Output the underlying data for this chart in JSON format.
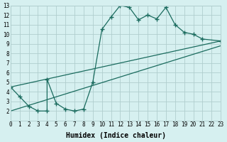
{
  "xlabel": "Humidex (Indice chaleur)",
  "bg_color": "#d6f0f0",
  "grid_color": "#b0cece",
  "line_color": "#1a6b5e",
  "xlim": [
    0,
    23
  ],
  "ylim": [
    1,
    13
  ],
  "xticks": [
    0,
    1,
    2,
    3,
    4,
    5,
    6,
    7,
    8,
    9,
    10,
    11,
    12,
    13,
    14,
    15,
    16,
    17,
    18,
    19,
    20,
    21,
    22,
    23
  ],
  "yticks": [
    2,
    3,
    4,
    5,
    6,
    7,
    8,
    9,
    10,
    11,
    12,
    13
  ],
  "series1_x": [
    0,
    1,
    2,
    3,
    4,
    4,
    5,
    6,
    7,
    8,
    9,
    10,
    11,
    12,
    13,
    14,
    15,
    16,
    17,
    18,
    19,
    20,
    21,
    23
  ],
  "series1_y": [
    4.5,
    3.5,
    2.5,
    2.0,
    2.0,
    5.3,
    2.8,
    2.2,
    2.0,
    2.2,
    5.0,
    10.5,
    11.8,
    13.0,
    12.8,
    11.5,
    12.0,
    11.6,
    12.8,
    11.0,
    10.2,
    10.0,
    9.5,
    9.3
  ],
  "series2_x": [
    0,
    23
  ],
  "series2_y": [
    4.5,
    9.3
  ],
  "series3_x": [
    0,
    23
  ],
  "series3_y": [
    2.0,
    8.8
  ]
}
